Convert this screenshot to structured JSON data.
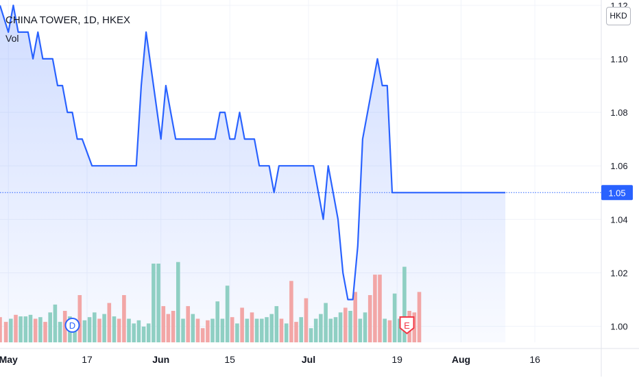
{
  "header": {
    "title": "CHINA TOWER, 1D, HKEX",
    "volume_label": "Vol",
    "currency": "HKD"
  },
  "chart_data": {
    "type": "line",
    "title": "CHINA TOWER, 1D, HKEX",
    "ylim": [
      0.994,
      1.122
    ],
    "y_ticks": [
      1.0,
      1.02,
      1.04,
      1.06,
      1.08,
      1.1,
      1.12
    ],
    "y_tick_labels": [
      "1.00",
      "1.02",
      "1.04",
      "1.06",
      "1.08",
      "1.10",
      "1.12"
    ],
    "x_tick_labels": [
      "May",
      "17",
      "Jun",
      "15",
      "Jul",
      "19",
      "Aug",
      "16"
    ],
    "x_tick_days": [
      0,
      16,
      31,
      45,
      61,
      79,
      92,
      107
    ],
    "x_range_days": [
      -1.7,
      120.5
    ],
    "last_price": 1.05,
    "last_price_label": "1.05",
    "line_color": "#2962ff",
    "series": [
      {
        "x_days": [
          -1.7,
          0,
          1,
          2,
          3,
          4,
          5,
          6,
          7,
          8,
          9,
          10,
          11,
          12,
          13,
          14,
          15,
          17,
          19,
          20,
          21,
          22,
          23,
          24,
          25,
          26,
          27,
          28,
          31,
          32,
          33,
          34,
          35,
          36,
          37,
          38,
          41,
          42,
          43,
          44,
          45,
          46,
          47,
          48,
          49,
          50,
          51,
          52,
          53,
          54,
          55,
          56,
          57,
          58,
          59,
          60,
          61,
          62,
          64,
          65,
          66,
          67,
          68,
          69,
          70,
          71,
          72,
          73,
          75,
          76,
          77,
          78,
          79,
          80,
          81,
          82,
          83,
          84,
          85,
          86,
          87,
          88,
          90,
          91,
          92,
          93,
          94,
          95,
          96,
          97,
          98,
          99,
          100,
          101
        ],
        "values": [
          1.12,
          1.11,
          1.12,
          1.11,
          1.11,
          1.11,
          1.1,
          1.11,
          1.1,
          1.1,
          1.1,
          1.09,
          1.09,
          1.08,
          1.08,
          1.07,
          1.07,
          1.06,
          1.06,
          1.06,
          1.06,
          1.06,
          1.06,
          1.06,
          1.06,
          1.06,
          1.09,
          1.11,
          1.07,
          1.09,
          1.08,
          1.07,
          1.07,
          1.07,
          1.07,
          1.07,
          1.07,
          1.07,
          1.08,
          1.08,
          1.07,
          1.07,
          1.08,
          1.07,
          1.07,
          1.07,
          1.06,
          1.06,
          1.06,
          1.05,
          1.06,
          1.06,
          1.06,
          1.06,
          1.06,
          1.06,
          1.06,
          1.06,
          1.04,
          1.06,
          1.05,
          1.04,
          1.02,
          1.01,
          1.01,
          1.03,
          1.07,
          1.08,
          1.1,
          1.09,
          1.09,
          1.05,
          1.05,
          1.05,
          1.05,
          1.05,
          1.05,
          1.05,
          1.05,
          1.05,
          1.05,
          1.05,
          1.05,
          1.05,
          1.05,
          1.05,
          1.05,
          1.05,
          1.05,
          1.05,
          1.05,
          1.05,
          1.05,
          1.05
        ]
      }
    ],
    "volume": {
      "up_color": "#8fcfc3",
      "down_color": "#f2a6a6",
      "bars": [
        {
          "x": -1.7,
          "v": 0.32,
          "up": false
        },
        {
          "x": -0.5,
          "v": 0.26,
          "up": false
        },
        {
          "x": 0.5,
          "v": 0.3,
          "up": true
        },
        {
          "x": 1.5,
          "v": 0.35,
          "up": false
        },
        {
          "x": 2.5,
          "v": 0.33,
          "up": true
        },
        {
          "x": 3.5,
          "v": 0.33,
          "up": true
        },
        {
          "x": 4.5,
          "v": 0.35,
          "up": true
        },
        {
          "x": 5.5,
          "v": 0.3,
          "up": false
        },
        {
          "x": 6.5,
          "v": 0.32,
          "up": true
        },
        {
          "x": 7.5,
          "v": 0.26,
          "up": false
        },
        {
          "x": 8.5,
          "v": 0.38,
          "up": true
        },
        {
          "x": 9.5,
          "v": 0.48,
          "up": true
        },
        {
          "x": 10.5,
          "v": 0.26,
          "up": true
        },
        {
          "x": 11.5,
          "v": 0.4,
          "up": false
        },
        {
          "x": 12.5,
          "v": 0.33,
          "up": true
        },
        {
          "x": 13.5,
          "v": 0.3,
          "up": true
        },
        {
          "x": 14.5,
          "v": 0.6,
          "up": false
        },
        {
          "x": 15.5,
          "v": 0.28,
          "up": true
        },
        {
          "x": 16.5,
          "v": 0.32,
          "up": true
        },
        {
          "x": 17.5,
          "v": 0.38,
          "up": true
        },
        {
          "x": 18.5,
          "v": 0.3,
          "up": false
        },
        {
          "x": 19.5,
          "v": 0.36,
          "up": true
        },
        {
          "x": 20.5,
          "v": 0.5,
          "up": false
        },
        {
          "x": 21.5,
          "v": 0.33,
          "up": true
        },
        {
          "x": 22.5,
          "v": 0.3,
          "up": false
        },
        {
          "x": 23.5,
          "v": 0.6,
          "up": false
        },
        {
          "x": 24.5,
          "v": 0.3,
          "up": true
        },
        {
          "x": 25.5,
          "v": 0.24,
          "up": true
        },
        {
          "x": 26.5,
          "v": 0.28,
          "up": true
        },
        {
          "x": 27.5,
          "v": 0.2,
          "up": true
        },
        {
          "x": 28.5,
          "v": 0.24,
          "up": true
        },
        {
          "x": 29.5,
          "v": 1.0,
          "up": true
        },
        {
          "x": 30.5,
          "v": 1.0,
          "up": true
        },
        {
          "x": 31.5,
          "v": 0.46,
          "up": false
        },
        {
          "x": 32.5,
          "v": 0.36,
          "up": false
        },
        {
          "x": 33.5,
          "v": 0.4,
          "up": false
        },
        {
          "x": 34.5,
          "v": 1.02,
          "up": true
        },
        {
          "x": 35.5,
          "v": 0.3,
          "up": true
        },
        {
          "x": 36.5,
          "v": 0.46,
          "up": false
        },
        {
          "x": 37.5,
          "v": 0.36,
          "up": true
        },
        {
          "x": 38.5,
          "v": 0.3,
          "up": false
        },
        {
          "x": 39.5,
          "v": 0.18,
          "up": false
        },
        {
          "x": 40.5,
          "v": 0.28,
          "up": false
        },
        {
          "x": 41.5,
          "v": 0.3,
          "up": true
        },
        {
          "x": 42.5,
          "v": 0.52,
          "up": true
        },
        {
          "x": 43.5,
          "v": 0.3,
          "up": true
        },
        {
          "x": 44.5,
          "v": 0.72,
          "up": true
        },
        {
          "x": 45.5,
          "v": 0.32,
          "up": false
        },
        {
          "x": 46.5,
          "v": 0.24,
          "up": true
        },
        {
          "x": 47.5,
          "v": 0.44,
          "up": false
        },
        {
          "x": 48.5,
          "v": 0.3,
          "up": true
        },
        {
          "x": 49.5,
          "v": 0.38,
          "up": false
        },
        {
          "x": 50.5,
          "v": 0.3,
          "up": true
        },
        {
          "x": 51.5,
          "v": 0.3,
          "up": true
        },
        {
          "x": 52.5,
          "v": 0.32,
          "up": true
        },
        {
          "x": 53.5,
          "v": 0.36,
          "up": true
        },
        {
          "x": 54.5,
          "v": 0.46,
          "up": true
        },
        {
          "x": 55.5,
          "v": 0.3,
          "up": false
        },
        {
          "x": 56.5,
          "v": 0.24,
          "up": true
        },
        {
          "x": 57.5,
          "v": 0.78,
          "up": false
        },
        {
          "x": 58.5,
          "v": 0.26,
          "up": false
        },
        {
          "x": 59.5,
          "v": 0.32,
          "up": true
        },
        {
          "x": 60.5,
          "v": 0.56,
          "up": false
        },
        {
          "x": 61.5,
          "v": 0.18,
          "up": true
        },
        {
          "x": 62.5,
          "v": 0.3,
          "up": true
        },
        {
          "x": 63.5,
          "v": 0.36,
          "up": true
        },
        {
          "x": 64.5,
          "v": 0.5,
          "up": true
        },
        {
          "x": 65.5,
          "v": 0.3,
          "up": true
        },
        {
          "x": 66.5,
          "v": 0.32,
          "up": true
        },
        {
          "x": 67.5,
          "v": 0.38,
          "up": true
        },
        {
          "x": 68.5,
          "v": 0.44,
          "up": false
        },
        {
          "x": 69.5,
          "v": 0.4,
          "up": true
        },
        {
          "x": 70.5,
          "v": 0.64,
          "up": false
        },
        {
          "x": 71.5,
          "v": 0.3,
          "up": true
        },
        {
          "x": 72.5,
          "v": 0.38,
          "up": true
        },
        {
          "x": 73.5,
          "v": 0.6,
          "up": false
        },
        {
          "x": 74.5,
          "v": 0.86,
          "up": false
        },
        {
          "x": 75.5,
          "v": 0.86,
          "up": false
        },
        {
          "x": 76.5,
          "v": 0.3,
          "up": true
        },
        {
          "x": 77.5,
          "v": 0.28,
          "up": false
        },
        {
          "x": 78.5,
          "v": 0.62,
          "up": true
        },
        {
          "x": 79.5,
          "v": 0.3,
          "up": true
        },
        {
          "x": 80.5,
          "v": 0.96,
          "up": true
        },
        {
          "x": 81.5,
          "v": 0.4,
          "up": false
        },
        {
          "x": 82.5,
          "v": 0.38,
          "up": false
        },
        {
          "x": 83.5,
          "v": 0.64,
          "up": false
        }
      ]
    },
    "markers": [
      {
        "label": "D",
        "x": 13,
        "color": "#2962ff",
        "kind": "dividend"
      },
      {
        "label": "E",
        "x": 81,
        "color": "#f23645",
        "kind": "earnings"
      }
    ]
  }
}
